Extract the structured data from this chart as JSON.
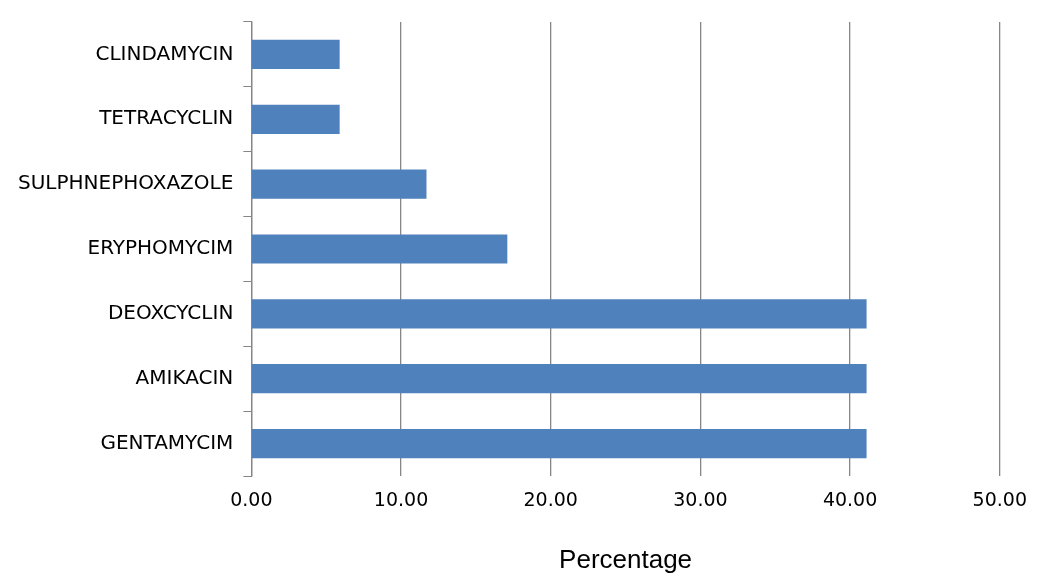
{
  "chart_data": {
    "type": "bar",
    "orientation": "horizontal",
    "xlabel": "Percentage",
    "categories": [
      "CLINDAMYCIN",
      "TETRACYCLIN",
      "SULPHNEPHOXAZOLE",
      "ERYPHOMYCIM",
      "DEOXCYCLIN",
      "AMIKACIN",
      "GENTAMYCIM"
    ],
    "values": [
      5.9,
      5.9,
      11.7,
      17.1,
      41.1,
      41.1,
      41.1
    ],
    "color": "#4f81bd",
    "xlim": [
      0,
      50
    ],
    "xticks": [
      {
        "value": 0,
        "label": "0.00"
      },
      {
        "value": 10,
        "label": "10.00"
      },
      {
        "value": 20,
        "label": "20.00"
      },
      {
        "value": 30,
        "label": "30.00"
      },
      {
        "value": 40,
        "label": "40.00"
      },
      {
        "value": 50,
        "label": "50.00"
      }
    ],
    "grid": "x",
    "legend": false
  }
}
